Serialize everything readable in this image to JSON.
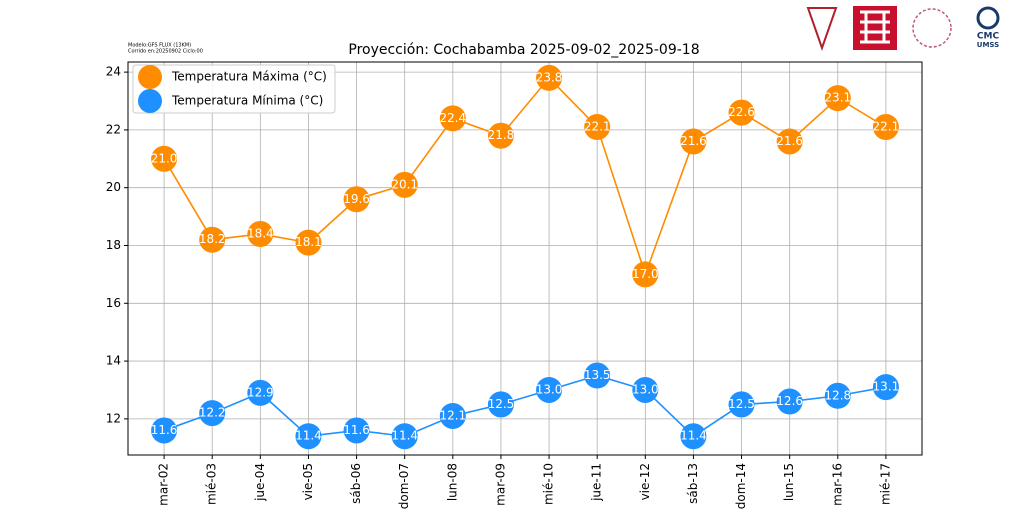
{
  "chart_data": {
    "type": "line",
    "title": "Proyección: Cochabamba 2025-09-02_2025-09-18",
    "notes": [
      "Modelo:GFS FLUX (13KM)",
      "Corrido en:20250902 Ciclo:00"
    ],
    "logo_text": [
      "CMC",
      "UMSS"
    ],
    "categories": [
      "mar-02",
      "mié-03",
      "jue-04",
      "vie-05",
      "sáb-06",
      "dom-07",
      "lun-08",
      "mar-09",
      "mié-10",
      "jue-11",
      "vie-12",
      "sáb-13",
      "dom-14",
      "lun-15",
      "mar-16",
      "mié-17"
    ],
    "series": [
      {
        "name": "Temperatura Máxima  (°C)",
        "color": "#ff8c00",
        "values": [
          21.0,
          18.2,
          18.4,
          18.1,
          19.6,
          20.1,
          22.4,
          21.8,
          23.8,
          22.1,
          17.0,
          21.6,
          22.6,
          21.6,
          23.1,
          22.1
        ],
        "value_labels": [
          "21.0",
          "18.2",
          "18.4",
          "18.1",
          "19.6",
          "20.1",
          "22.4",
          "21.8",
          "23.8",
          "22.1",
          "17.0",
          "21.6",
          "22.6",
          "21.6",
          "23.1",
          "22.1"
        ]
      },
      {
        "name": "Temperatura Mínima  (°C)",
        "color": "#1e90ff",
        "values": [
          11.6,
          12.2,
          12.9,
          11.4,
          11.6,
          11.4,
          12.1,
          12.5,
          13.0,
          13.5,
          13.0,
          11.4,
          12.5,
          12.6,
          12.8,
          13.1
        ],
        "value_labels": [
          "11.6",
          "12.2",
          "12.9",
          "11.4",
          "11.6",
          "11.4",
          "12.1",
          "12.5",
          "13.0",
          "13.5",
          "13.0",
          "11.4",
          "12.5",
          "12.6",
          "12.8",
          "13.1"
        ]
      }
    ],
    "ylim": [
      10.75,
      24.35
    ],
    "yticks": [
      12,
      14,
      16,
      18,
      20,
      22,
      24
    ],
    "grid": true,
    "legend": "upper-left"
  }
}
